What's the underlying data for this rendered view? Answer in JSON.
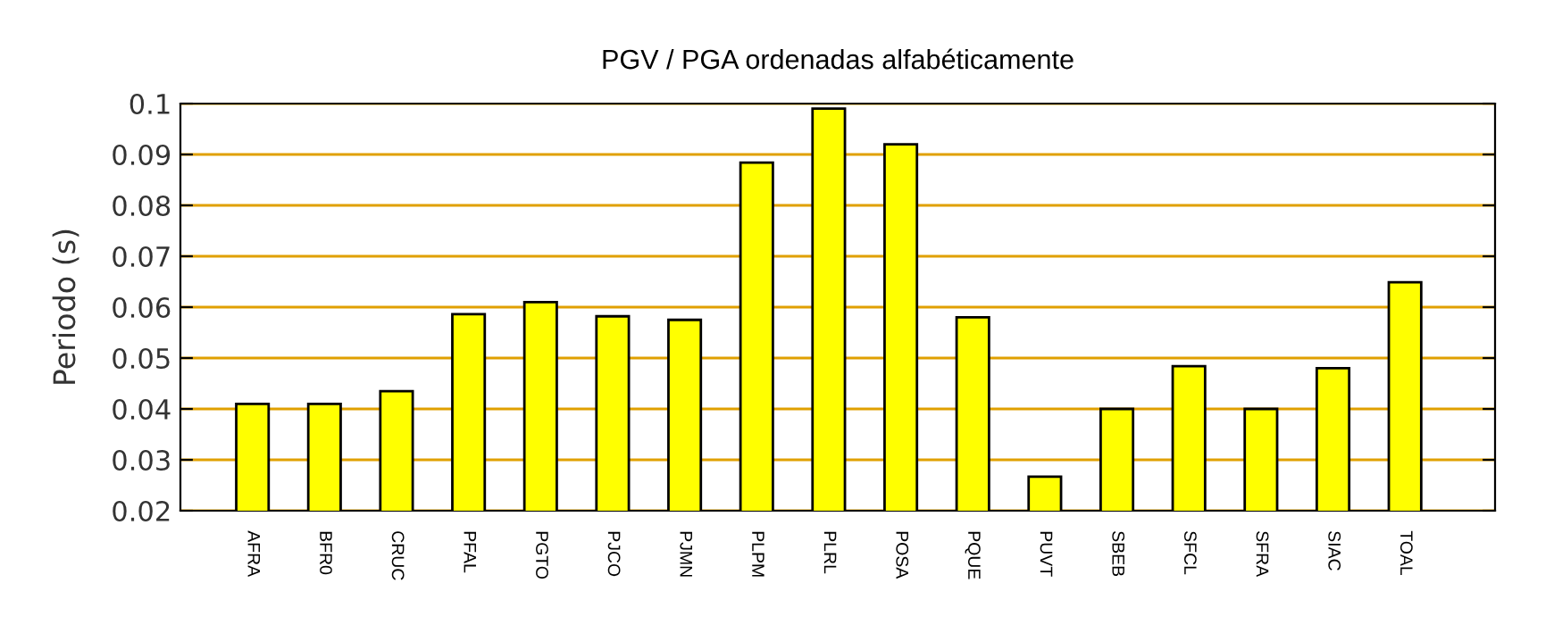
{
  "chart_data": {
    "type": "bar",
    "title": "PGV / PGA ordenadas alfabéticamente",
    "ylabel": "Periodo (s)",
    "categories": [
      "AFRA",
      "BFR0",
      "CRUC",
      "PFAL",
      "PGTO",
      "PJCO",
      "PJMN",
      "PLPM",
      "PLRL",
      "POSA",
      "PQUE",
      "PUVT",
      "SBEB",
      "SFCL",
      "SFRA",
      "SIAC",
      "TOAL"
    ],
    "values": [
      0.041,
      0.041,
      0.0435,
      0.0586,
      0.061,
      0.0582,
      0.0575,
      0.0884,
      0.099,
      0.092,
      0.058,
      0.0267,
      0.04,
      0.0484,
      0.04,
      0.048,
      0.0649
    ],
    "color": "#ffff00",
    "ylim": [
      0.02,
      0.1
    ],
    "yticks": [
      0.02,
      0.03,
      0.04,
      0.05,
      0.06,
      0.07,
      0.08,
      0.09,
      0.1
    ],
    "grid": "y",
    "legend": false
  }
}
